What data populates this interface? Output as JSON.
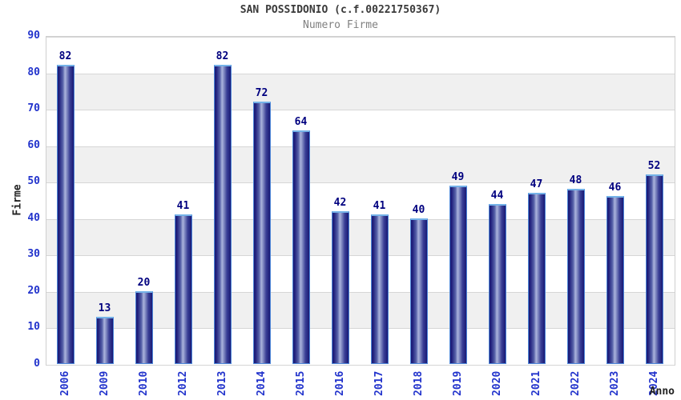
{
  "chart_data": {
    "type": "bar",
    "title": "SAN POSSIDONIO (c.f.00221750367)",
    "subtitle": "Numero Firme",
    "xlabel": "Anno",
    "ylabel": "Firme",
    "categories": [
      "2006",
      "2009",
      "2010",
      "2012",
      "2013",
      "2014",
      "2015",
      "2016",
      "2017",
      "2018",
      "2019",
      "2020",
      "2021",
      "2022",
      "2023",
      "2024"
    ],
    "values": [
      82,
      13,
      20,
      41,
      82,
      72,
      64,
      42,
      41,
      40,
      49,
      44,
      47,
      48,
      46,
      52
    ],
    "ylim": [
      0,
      90
    ],
    "ytick_step": 10,
    "grid": true,
    "legend_position": "none",
    "band_colors": [
      "#ffffff",
      "#f0f0f0"
    ]
  },
  "colors": {
    "tick_label": "#2233cc",
    "value_label": "#00007f",
    "bar_dark": "#191974",
    "bar_light": "#aab3dc",
    "bar_border": "#4d86d8",
    "grid_line": "#d6d6d6",
    "title": "#3a3a3a",
    "subtitle": "#808080"
  }
}
